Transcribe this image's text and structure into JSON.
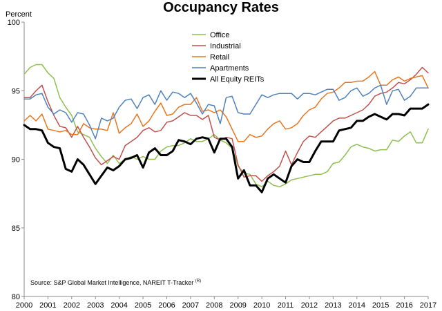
{
  "chart_data": {
    "type": "line",
    "title": "Occupancy Rates",
    "ylabel": "Percent",
    "xlabel": "",
    "xlim": [
      2000,
      2017
    ],
    "ylim": [
      80,
      100
    ],
    "x_ticks": [
      "2000",
      "2001",
      "2002",
      "2003",
      "2004",
      "2005",
      "2006",
      "2007",
      "2008",
      "2009",
      "2010",
      "2011",
      "2012",
      "2013",
      "2014",
      "2015",
      "2016",
      "2017"
    ],
    "y_ticks": [
      "80",
      "85",
      "90",
      "95",
      "100"
    ],
    "grid": "none",
    "legend_position": "top-center",
    "source": "Source: S&P Global Market Intelligence, NAREIT T-Tracker",
    "source_mark": "(R)",
    "x": [
      2000,
      2000.25,
      2000.5,
      2000.75,
      2001,
      2001.25,
      2001.5,
      2001.75,
      2002,
      2002.25,
      2002.5,
      2002.75,
      2003,
      2003.25,
      2003.5,
      2003.75,
      2004,
      2004.25,
      2004.5,
      2004.75,
      2005,
      2005.25,
      2005.5,
      2005.75,
      2006,
      2006.25,
      2006.5,
      2006.75,
      2007,
      2007.25,
      2007.5,
      2007.75,
      2008,
      2008.25,
      2008.5,
      2008.75,
      2009,
      2009.25,
      2009.5,
      2009.75,
      2010,
      2010.25,
      2010.5,
      2010.75,
      2011,
      2011.25,
      2011.5,
      2011.75,
      2012,
      2012.25,
      2012.5,
      2012.75,
      2013,
      2013.25,
      2013.5,
      2013.75,
      2014,
      2014.25,
      2014.5,
      2014.75,
      2015,
      2015.25,
      2015.5,
      2015.75,
      2016,
      2016.25,
      2016.5,
      2016.75,
      2017
    ],
    "series": [
      {
        "name": "Office",
        "color": "#8fbf4f",
        "width": 1.5,
        "values": [
          96.2,
          96.7,
          96.9,
          96.9,
          96.3,
          95.9,
          94.5,
          93.8,
          93.2,
          92.0,
          91.8,
          91.6,
          90.8,
          90.2,
          89.7,
          90.3,
          89.7,
          90.0,
          90.2,
          90.0,
          90.2,
          90.0,
          90.0,
          90.6,
          90.9,
          91.0,
          91.0,
          91.2,
          91.5,
          91.3,
          91.3,
          91.5,
          91.8,
          91.4,
          91.2,
          90.8,
          89.5,
          89.0,
          88.9,
          88.2,
          88.0,
          88.4,
          88.1,
          88.0,
          88.2,
          88.5,
          88.6,
          88.7,
          88.8,
          88.9,
          88.9,
          89.1,
          89.7,
          89.8,
          90.3,
          90.9,
          91.1,
          90.9,
          90.8,
          90.6,
          90.7,
          90.7,
          91.4,
          91.3,
          91.7,
          92.0,
          91.2,
          91.2,
          92.2
        ]
      },
      {
        "name": "Industrial",
        "color": "#c0504d",
        "width": 1.5,
        "values": [
          94.5,
          94.5,
          95.0,
          95.4,
          94.2,
          93.2,
          92.4,
          92.3,
          91.6,
          92.4,
          91.6,
          90.9,
          90.1,
          89.6,
          89.9,
          90.2,
          90.0,
          91.0,
          91.3,
          91.6,
          92.1,
          92.3,
          92.0,
          92.1,
          92.7,
          92.8,
          93.1,
          93.4,
          93.2,
          93.2,
          92.9,
          93.2,
          91.6,
          91.4,
          91.6,
          91.5,
          89.6,
          88.7,
          88.8,
          88.8,
          88.4,
          88.8,
          89.1,
          89.5,
          90.6,
          89.6,
          90.5,
          91.3,
          91.7,
          91.6,
          92.0,
          92.4,
          92.8,
          93.0,
          93.0,
          93.2,
          93.4,
          93.6,
          94.0,
          94.6,
          94.8,
          94.9,
          95.2,
          95.6,
          95.5,
          95.8,
          96.2,
          96.7,
          96.3
        ]
      },
      {
        "name": "Retail",
        "color": "#e8761e",
        "width": 1.5,
        "values": [
          92.8,
          93.2,
          92.8,
          93.3,
          92.2,
          92.1,
          92.0,
          92.1,
          91.8,
          91.8,
          92.6,
          92.3,
          92.2,
          92.2,
          92.1,
          93.4,
          91.9,
          92.3,
          92.6,
          93.3,
          92.4,
          92.8,
          93.5,
          94.1,
          93.2,
          93.3,
          93.8,
          94.0,
          94.0,
          94.5,
          93.5,
          93.6,
          93.4,
          93.6,
          93.1,
          92.2,
          91.3,
          91.3,
          91.8,
          91.6,
          91.7,
          92.2,
          92.6,
          92.8,
          92.2,
          92.3,
          92.6,
          93.2,
          93.6,
          93.8,
          94.4,
          94.8,
          94.9,
          95.2,
          95.6,
          95.6,
          95.7,
          95.7,
          96.0,
          96.4,
          95.4,
          95.4,
          95.8,
          96.0,
          95.7,
          95.9,
          96.0,
          96.1,
          95.2
        ]
      },
      {
        "name": "Apartments",
        "color": "#4f81bd",
        "width": 1.5,
        "values": [
          94.4,
          94.4,
          94.7,
          94.8,
          93.8,
          93.3,
          93.6,
          93.4,
          92.7,
          93.4,
          93.3,
          92.5,
          91.5,
          93.0,
          92.8,
          93.0,
          93.8,
          94.3,
          94.4,
          93.7,
          94.5,
          94.7,
          94.0,
          95.0,
          94.3,
          94.9,
          94.8,
          94.5,
          94.8,
          94.1,
          93.3,
          94.0,
          93.9,
          92.6,
          94.5,
          94.6,
          93.4,
          93.3,
          93.3,
          94.0,
          94.7,
          94.5,
          94.7,
          94.8,
          94.8,
          94.8,
          94.4,
          94.8,
          94.8,
          94.7,
          94.9,
          95.1,
          95.1,
          94.3,
          94.5,
          95.0,
          95.2,
          94.6,
          94.8,
          95.2,
          95.4,
          94.0,
          95.0,
          95.1,
          94.3,
          94.6,
          95.2,
          95.2,
          95.2
        ]
      },
      {
        "name": "All Equity REITs",
        "color": "#000000",
        "width": 3,
        "values": [
          92.5,
          92.2,
          92.2,
          92.1,
          91.2,
          90.9,
          90.8,
          89.3,
          89.1,
          90.0,
          89.6,
          88.9,
          88.2,
          88.8,
          89.4,
          89.2,
          89.5,
          90.0,
          90.1,
          90.3,
          89.4,
          90.5,
          90.8,
          90.3,
          90.3,
          90.6,
          91.4,
          91.3,
          91.1,
          91.5,
          91.6,
          91.5,
          90.5,
          91.5,
          91.5,
          90.9,
          88.6,
          89.2,
          88.1,
          88.1,
          87.6,
          88.6,
          88.9,
          88.6,
          88.3,
          89.5,
          90.0,
          89.8,
          89.8,
          90.6,
          91.3,
          91.3,
          91.3,
          92.1,
          92.2,
          92.3,
          92.8,
          92.8,
          93.1,
          93.3,
          93.1,
          92.9,
          93.3,
          93.3,
          93.2,
          93.7,
          93.7,
          93.7,
          94.0
        ]
      }
    ]
  }
}
